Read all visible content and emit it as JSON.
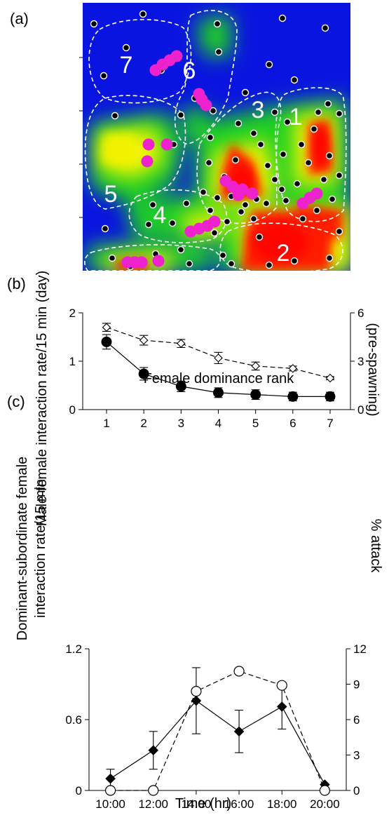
{
  "panels": {
    "a": {
      "label": "(a)"
    },
    "b": {
      "label": "(b)"
    },
    "c": {
      "label": "(c)"
    }
  },
  "heatmap": {
    "zone_labels": [
      "1",
      "2",
      "3",
      "4",
      "5",
      "6",
      "7"
    ],
    "colors": {
      "background": "#0a14e0",
      "low": "#1fd020",
      "mid": "#f5f500",
      "high": "#ff1a00",
      "female": "#ee22cc",
      "territory": "#ffffff"
    }
  },
  "chart_data": [
    {
      "type": "heatmap",
      "zones": [
        "1",
        "2",
        "3",
        "4",
        "5",
        "6",
        "7"
      ]
    },
    {
      "type": "line",
      "xlabel": "Female dominance rank",
      "ylabel": "Male-female interaction rate/15 min (day)",
      "y2label": "(pre-spawning)",
      "x": [
        1,
        2,
        3,
        4,
        5,
        6,
        7
      ],
      "xticks": [
        "1",
        "2",
        "3",
        "4",
        "5",
        "6",
        "7"
      ],
      "ylim": [
        0,
        2
      ],
      "yticks": [
        "0",
        "1",
        "2"
      ],
      "y2lim": [
        0,
        6
      ],
      "y2ticks": [
        "0",
        "3",
        "6"
      ],
      "series": [
        {
          "axis": "left",
          "style": "solid",
          "marker": "filled-circle",
          "values": [
            1.4,
            0.74,
            0.48,
            0.35,
            0.31,
            0.27,
            0.27
          ],
          "errors": [
            0.15,
            0.13,
            0.11,
            0.1,
            0.1,
            0.09,
            0.09
          ]
        },
        {
          "axis": "right",
          "style": "dashed",
          "marker": "open-diamond",
          "values": [
            5.1,
            4.3,
            4.1,
            3.2,
            2.7,
            2.55,
            1.95
          ],
          "errors": [
            0.25,
            0.3,
            0.25,
            0.35,
            0.25,
            0.15,
            0.1
          ]
        }
      ]
    },
    {
      "type": "line",
      "xlabel": "Time (hr)",
      "ylabel": "Dominant-subordinate female interaction rate/15 min",
      "y2label": "% attack",
      "x": [
        10,
        12,
        14,
        16,
        18,
        20
      ],
      "xticks": [
        "10:00",
        "12:00",
        "14:00",
        "16:00",
        "18:00",
        "20:00"
      ],
      "xlim": [
        9,
        21
      ],
      "ylim": [
        0,
        1.2
      ],
      "yticks": [
        "0",
        "0.6",
        "1.2"
      ],
      "y2lim": [
        0,
        12
      ],
      "y2ticks": [
        "0",
        "3",
        "6",
        "9",
        "12"
      ],
      "series": [
        {
          "axis": "left",
          "style": "solid",
          "marker": "filled-diamond",
          "values": [
            0.1,
            0.34,
            0.76,
            0.5,
            0.71,
            0.05
          ],
          "errors": [
            0.08,
            0.16,
            0.28,
            0.18,
            0.19,
            0.0
          ]
        },
        {
          "axis": "right",
          "style": "dashed",
          "marker": "open-circle",
          "values": [
            0.0,
            0.0,
            8.4,
            10.1,
            8.9,
            0.0
          ]
        }
      ]
    }
  ]
}
